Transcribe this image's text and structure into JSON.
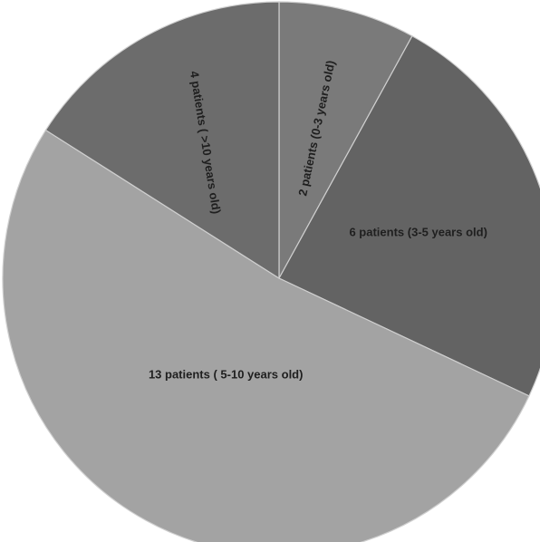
{
  "chart_data": {
    "type": "pie",
    "title": "",
    "slices": [
      {
        "label": "2 patients (0-3 years old)",
        "value": 2,
        "color": "#7a7a7a"
      },
      {
        "label": "6 patients (3-5 years old)",
        "value": 6,
        "color": "#636363"
      },
      {
        "label": "13 patients ( 5-10 years old)",
        "value": 13,
        "color": "#a3a3a3"
      },
      {
        "label": "4 patients ( >10 years old)",
        "value": 4,
        "color": "#6c6c6c"
      }
    ]
  }
}
